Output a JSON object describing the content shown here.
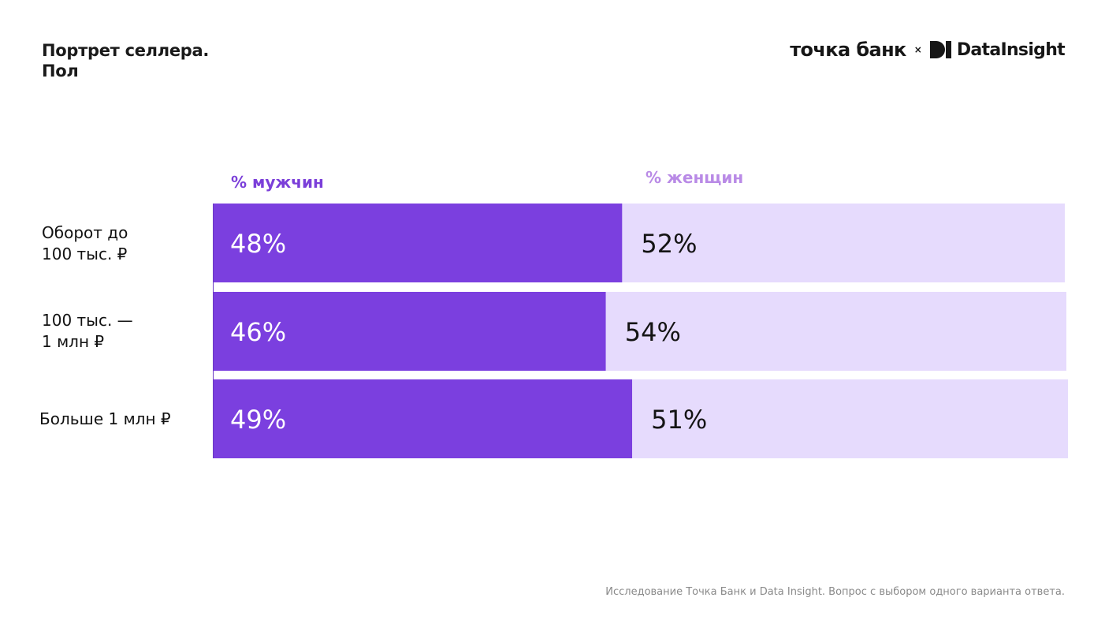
{
  "title": {
    "line1": "Портрет селлера.",
    "line2": "Пол"
  },
  "logos": {
    "tochka": "точка банк",
    "separator": "×",
    "datainsight": "DataInsight"
  },
  "source_note": "Исследование Точка Банк и Data Insight. Вопрос с выбором одного варианта ответа.",
  "colors": {
    "men": "#7b3fdf",
    "women": "#e6dbfd",
    "men_legend": "#7b3fd9",
    "women_legend": "#b98ae6"
  },
  "chart_data": {
    "type": "bar",
    "orientation": "horizontal",
    "stacked": true,
    "categories": [
      [
        "Оборот до",
        "100 тыс. ₽"
      ],
      [
        "100 тыс. —",
        "1 млн ₽"
      ],
      [
        "Больше 1 млн ₽"
      ]
    ],
    "series": [
      {
        "name": "% мужчин",
        "values": [
          48,
          46,
          49
        ],
        "labels": [
          "48%",
          "46%",
          "49%"
        ]
      },
      {
        "name": "% женщин",
        "values": [
          52,
          54,
          51
        ],
        "labels": [
          "52%",
          "54%",
          "51%"
        ]
      }
    ],
    "xlim": [
      0,
      100
    ],
    "legend_position": "top",
    "grid": false
  }
}
